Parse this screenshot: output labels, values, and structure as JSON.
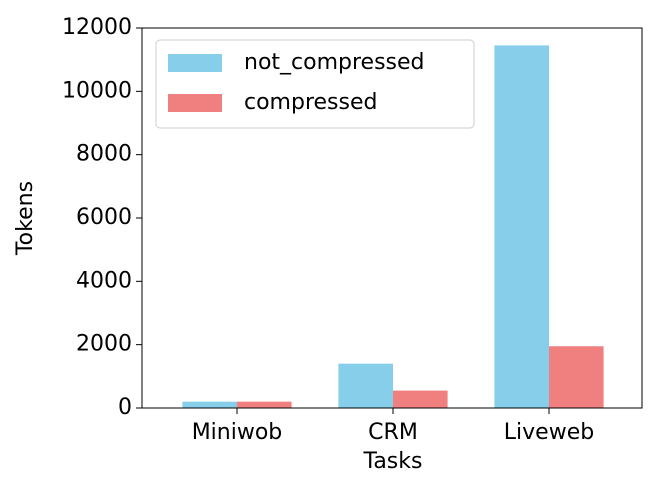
{
  "chart_data": {
    "type": "bar",
    "x_label": "Tasks",
    "y_label": "Tokens",
    "categories": [
      "Miniwob",
      "CRM",
      "Liveweb"
    ],
    "series": [
      {
        "name": "not_compressed",
        "color": "#87ceeb",
        "values": [
          200,
          1400,
          11450
        ]
      },
      {
        "name": "compressed",
        "color": "#f08080",
        "values": [
          200,
          550,
          1950
        ]
      }
    ],
    "ylim": [
      0,
      12000
    ],
    "yticks": [
      0,
      2000,
      4000,
      6000,
      8000,
      10000,
      12000
    ],
    "legend": "upper left"
  }
}
